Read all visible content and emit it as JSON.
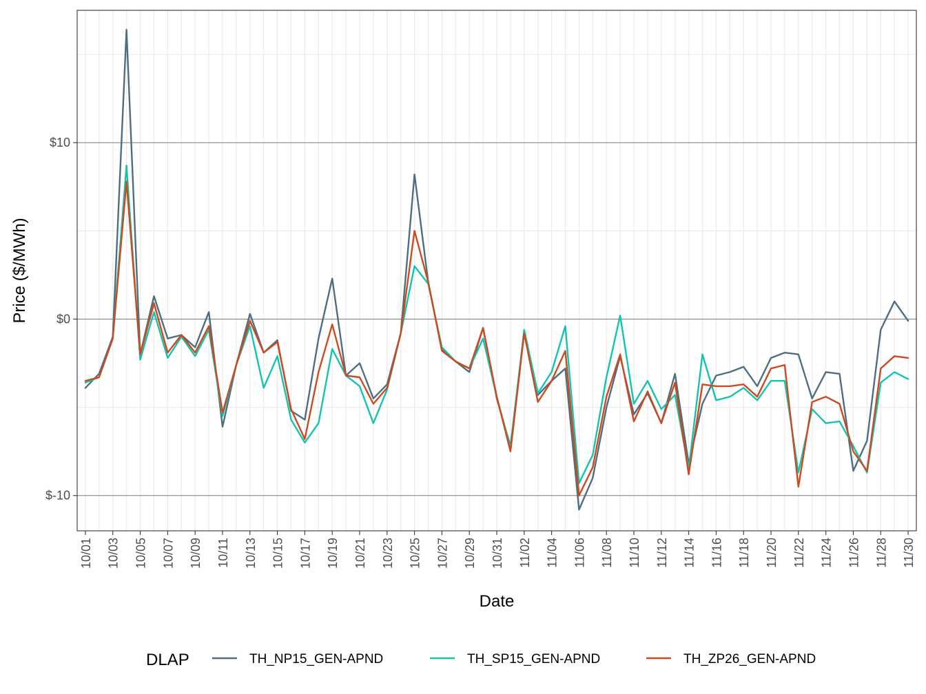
{
  "chart_data": {
    "type": "line",
    "xlabel": "Date",
    "ylabel": "Price ($/MWh)",
    "xlim": [
      "10/01",
      "11/30"
    ],
    "ylim": [
      -12,
      17.5
    ],
    "y_ticks": [
      -10,
      0,
      10
    ],
    "y_tick_labels": [
      "$-10",
      "$0",
      "$10"
    ],
    "x_tick_labels": [
      "10/01",
      "10/03",
      "10/05",
      "10/07",
      "10/09",
      "10/11",
      "10/13",
      "10/15",
      "10/17",
      "10/19",
      "10/21",
      "10/23",
      "10/25",
      "10/27",
      "10/29",
      "10/31",
      "11/02",
      "11/04",
      "11/06",
      "11/08",
      "11/10",
      "11/12",
      "11/14",
      "11/16",
      "11/18",
      "11/20",
      "11/22",
      "11/24",
      "11/26",
      "11/28",
      "11/30"
    ],
    "grid": true,
    "legend": {
      "title": "DLAP",
      "position": "bottom"
    },
    "x": [
      "10/01",
      "10/02",
      "10/03",
      "10/04",
      "10/05",
      "10/06",
      "10/07",
      "10/08",
      "10/09",
      "10/10",
      "10/11",
      "10/12",
      "10/13",
      "10/14",
      "10/15",
      "10/16",
      "10/17",
      "10/18",
      "10/19",
      "10/20",
      "10/21",
      "10/22",
      "10/23",
      "10/24",
      "10/25",
      "10/26",
      "10/27",
      "10/28",
      "10/29",
      "10/30",
      "10/31",
      "11/01",
      "11/02",
      "11/03",
      "11/04",
      "11/05",
      "11/06",
      "11/07",
      "11/08",
      "11/09",
      "11/10",
      "11/11",
      "11/12",
      "11/13",
      "11/14",
      "11/15",
      "11/16",
      "11/17",
      "11/18",
      "11/19",
      "11/20",
      "11/21",
      "11/22",
      "11/23",
      "11/24",
      "11/25",
      "11/26",
      "11/27",
      "11/28",
      "11/29",
      "11/30"
    ],
    "series": [
      {
        "name": "TH_NP15_GEN-APND",
        "color": "#4d6e82",
        "values": [
          -3.9,
          -3.1,
          -1.0,
          16.4,
          -2.0,
          1.3,
          -1.1,
          -0.9,
          -1.6,
          0.4,
          -6.1,
          -2.6,
          0.3,
          -1.9,
          -1.2,
          -5.2,
          -5.7,
          -1.1,
          2.3,
          -3.2,
          -2.5,
          -4.5,
          -3.7,
          -0.8,
          8.2,
          2.1,
          -1.7,
          -2.4,
          -3.0,
          -0.5,
          -4.5,
          -7.2,
          -0.7,
          -4.3,
          -3.5,
          -2.8,
          -10.8,
          -9.0,
          -5.0,
          -2.1,
          -5.4,
          -4.2,
          -5.9,
          -3.1,
          -8.2,
          -4.8,
          -3.2,
          -3.0,
          -2.7,
          -3.8,
          -2.2,
          -1.9,
          -2.0,
          -4.5,
          -3.0,
          -3.1,
          -8.6,
          -6.9,
          -0.6,
          1.0,
          -0.1
        ]
      },
      {
        "name": "TH_SP15_GEN-APND",
        "color": "#12c4b0",
        "values": [
          -3.6,
          -3.3,
          -1.1,
          8.7,
          -2.3,
          0.4,
          -2.2,
          -1.0,
          -2.1,
          -0.6,
          -5.5,
          -2.6,
          -0.4,
          -3.9,
          -2.1,
          -5.7,
          -7.0,
          -5.9,
          -1.7,
          -3.2,
          -3.8,
          -5.9,
          -4.0,
          -0.8,
          3.0,
          2.0,
          -1.6,
          -2.4,
          -2.8,
          -1.1,
          -4.4,
          -7.3,
          -0.6,
          -4.2,
          -3.0,
          -0.4,
          -9.3,
          -7.7,
          -3.3,
          0.2,
          -4.8,
          -3.5,
          -5.1,
          -4.3,
          -8.5,
          -2.0,
          -4.6,
          -4.4,
          -3.9,
          -4.6,
          -3.5,
          -3.5,
          -8.7,
          -5.1,
          -5.9,
          -5.8,
          -7.2,
          -8.7,
          -3.6,
          -3.0,
          -3.4
        ]
      },
      {
        "name": "TH_ZP26_GEN-APND",
        "color": "#ce4a1e",
        "values": [
          -3.5,
          -3.3,
          -1.1,
          7.8,
          -2.0,
          0.9,
          -1.9,
          -0.9,
          -1.9,
          -0.4,
          -5.3,
          -2.6,
          -0.1,
          -1.9,
          -1.3,
          -5.1,
          -6.8,
          -3.0,
          -0.3,
          -3.2,
          -3.3,
          -4.8,
          -3.9,
          -0.8,
          5.0,
          2.1,
          -1.8,
          -2.4,
          -2.8,
          -0.5,
          -4.4,
          -7.5,
          -0.8,
          -4.7,
          -3.5,
          -1.8,
          -10.0,
          -8.4,
          -4.4,
          -2.0,
          -5.8,
          -4.1,
          -5.9,
          -3.6,
          -8.8,
          -3.7,
          -3.8,
          -3.8,
          -3.7,
          -4.4,
          -2.8,
          -2.6,
          -9.5,
          -4.7,
          -4.4,
          -4.8,
          -7.5,
          -8.6,
          -2.8,
          -2.1,
          -2.2
        ]
      }
    ]
  }
}
